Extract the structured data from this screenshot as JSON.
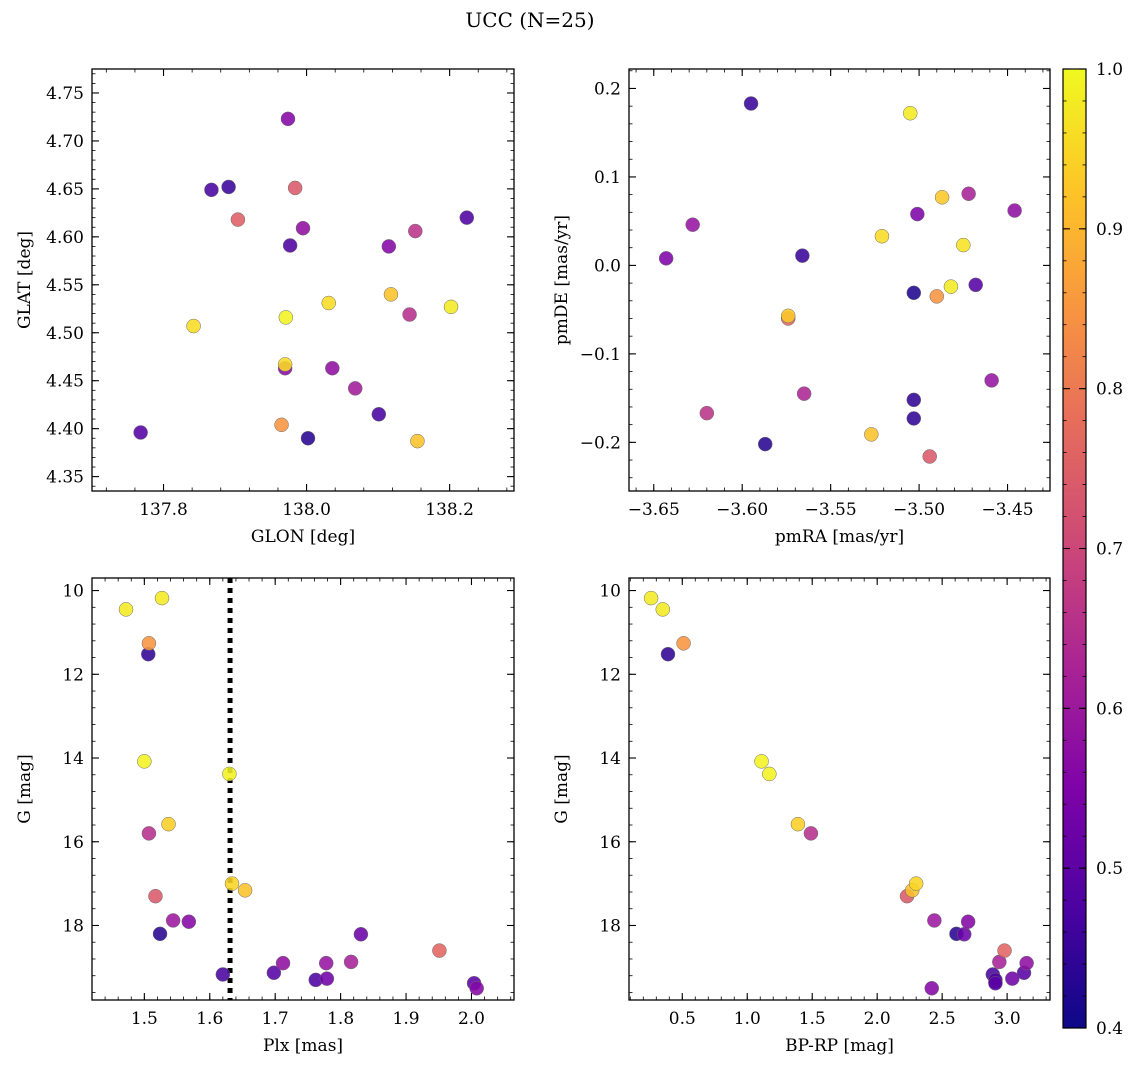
{
  "figure": {
    "title": "UCC (N=25)"
  },
  "colormap": {
    "name": "plasma",
    "min": 0.4,
    "max": 1.0,
    "ticks": [
      0.4,
      0.5,
      0.6,
      0.7,
      0.8,
      0.9,
      1.0
    ],
    "tick_labels": [
      "0.4",
      "0.5",
      "0.6",
      "0.7",
      "0.8",
      "0.9",
      "1.0"
    ]
  },
  "chart_data": [
    {
      "type": "scatter",
      "panel": "top-left",
      "xlabel": "GLON [deg]",
      "ylabel": "GLAT [deg]",
      "xlim": [
        137.7,
        138.29
      ],
      "ylim": [
        4.335,
        4.775
      ],
      "xticks": [
        137.8,
        138.0,
        138.2
      ],
      "xtick_labels": [
        "137.8",
        "138.0",
        "138.2"
      ],
      "yticks": [
        4.35,
        4.4,
        4.45,
        4.5,
        4.55,
        4.6,
        4.65,
        4.7,
        4.75
      ],
      "ytick_labels": [
        "4.35",
        "4.40",
        "4.45",
        "4.50",
        "4.55",
        "4.60",
        "4.65",
        "4.70",
        "4.75"
      ],
      "points": [
        {
          "x": 137.974,
          "y": 4.723,
          "c": 0.56
        },
        {
          "x": 137.867,
          "y": 4.649,
          "c": 0.47
        },
        {
          "x": 137.891,
          "y": 4.652,
          "c": 0.45
        },
        {
          "x": 137.984,
          "y": 4.651,
          "c": 0.74
        },
        {
          "x": 137.904,
          "y": 4.618,
          "c": 0.75
        },
        {
          "x": 137.995,
          "y": 4.609,
          "c": 0.58
        },
        {
          "x": 137.977,
          "y": 4.591,
          "c": 0.48
        },
        {
          "x": 138.224,
          "y": 4.62,
          "c": 0.48
        },
        {
          "x": 138.115,
          "y": 4.59,
          "c": 0.56
        },
        {
          "x": 138.152,
          "y": 4.606,
          "c": 0.66
        },
        {
          "x": 138.031,
          "y": 4.531,
          "c": 0.96
        },
        {
          "x": 138.118,
          "y": 4.54,
          "c": 0.92
        },
        {
          "x": 138.202,
          "y": 4.527,
          "c": 0.98
        },
        {
          "x": 137.842,
          "y": 4.507,
          "c": 0.96
        },
        {
          "x": 137.971,
          "y": 4.516,
          "c": 0.99
        },
        {
          "x": 138.144,
          "y": 4.519,
          "c": 0.65
        },
        {
          "x": 137.97,
          "y": 4.467,
          "c": 0.96
        },
        {
          "x": 137.97,
          "y": 4.463,
          "c": 0.57
        },
        {
          "x": 138.036,
          "y": 4.463,
          "c": 0.58
        },
        {
          "x": 138.068,
          "y": 4.442,
          "c": 0.61
        },
        {
          "x": 138.101,
          "y": 4.415,
          "c": 0.47
        },
        {
          "x": 137.965,
          "y": 4.404,
          "c": 0.85
        },
        {
          "x": 138.002,
          "y": 4.39,
          "c": 0.43
        },
        {
          "x": 138.155,
          "y": 4.387,
          "c": 0.92
        },
        {
          "x": 137.768,
          "y": 4.396,
          "c": 0.49
        }
      ]
    },
    {
      "type": "scatter",
      "panel": "top-right",
      "xlabel": "pmRA [mas/yr]",
      "ylabel": "pmDE [mas/yr]",
      "xlim": [
        -3.664,
        -3.426
      ],
      "ylim": [
        -0.255,
        0.222
      ],
      "xticks": [
        -3.65,
        -3.6,
        -3.55,
        -3.5,
        -3.45
      ],
      "xtick_labels": [
        "−3.65",
        "−3.60",
        "−3.55",
        "−3.50",
        "−3.45"
      ],
      "yticks": [
        -0.2,
        -0.1,
        0.0,
        0.1,
        0.2
      ],
      "ytick_labels": [
        "−0.2",
        "−0.1",
        "0.0",
        "0.1",
        "0.2"
      ],
      "points": [
        {
          "x": -3.595,
          "y": 0.183,
          "c": 0.45
        },
        {
          "x": -3.505,
          "y": 0.172,
          "c": 0.98
        },
        {
          "x": -3.472,
          "y": 0.081,
          "c": 0.62
        },
        {
          "x": -3.487,
          "y": 0.077,
          "c": 0.93
        },
        {
          "x": -3.446,
          "y": 0.062,
          "c": 0.58
        },
        {
          "x": -3.501,
          "y": 0.058,
          "c": 0.55
        },
        {
          "x": -3.628,
          "y": 0.046,
          "c": 0.59
        },
        {
          "x": -3.521,
          "y": 0.033,
          "c": 0.96
        },
        {
          "x": -3.475,
          "y": 0.023,
          "c": 0.97
        },
        {
          "x": -3.566,
          "y": 0.011,
          "c": 0.45
        },
        {
          "x": -3.643,
          "y": 0.008,
          "c": 0.55
        },
        {
          "x": -3.468,
          "y": -0.022,
          "c": 0.49
        },
        {
          "x": -3.482,
          "y": -0.024,
          "c": 0.98
        },
        {
          "x": -3.503,
          "y": -0.031,
          "c": 0.42
        },
        {
          "x": -3.49,
          "y": -0.035,
          "c": 0.85
        },
        {
          "x": -3.574,
          "y": -0.06,
          "c": 0.76
        },
        {
          "x": -3.574,
          "y": -0.057,
          "c": 0.93
        },
        {
          "x": -3.459,
          "y": -0.13,
          "c": 0.59
        },
        {
          "x": -3.565,
          "y": -0.145,
          "c": 0.63
        },
        {
          "x": -3.503,
          "y": -0.152,
          "c": 0.44
        },
        {
          "x": -3.62,
          "y": -0.167,
          "c": 0.66
        },
        {
          "x": -3.503,
          "y": -0.173,
          "c": 0.44
        },
        {
          "x": -3.527,
          "y": -0.191,
          "c": 0.92
        },
        {
          "x": -3.587,
          "y": -0.202,
          "c": 0.43
        },
        {
          "x": -3.494,
          "y": -0.216,
          "c": 0.74
        }
      ]
    },
    {
      "type": "scatter",
      "panel": "bottom-left",
      "xlabel": "Plx [mas]",
      "ylabel": "G [mag]",
      "xlim": [
        1.42,
        2.065
      ],
      "ylim": [
        19.78,
        9.7
      ],
      "y_inverted": true,
      "xticks": [
        1.5,
        1.6,
        1.7,
        1.8,
        1.9,
        2.0
      ],
      "xtick_labels": [
        "1.5",
        "1.6",
        "1.7",
        "1.8",
        "1.9",
        "2.0"
      ],
      "yticks": [
        10,
        12,
        14,
        16,
        18
      ],
      "ytick_labels": [
        "10",
        "12",
        "14",
        "16",
        "18"
      ],
      "vline": {
        "x": 1.631,
        "style": "dotted",
        "color": "#000000"
      },
      "points": [
        {
          "x": 1.472,
          "y": 10.45,
          "c": 0.98
        },
        {
          "x": 1.527,
          "y": 10.18,
          "c": 0.98
        },
        {
          "x": 1.507,
          "y": 11.26,
          "c": 0.85
        },
        {
          "x": 1.506,
          "y": 11.52,
          "c": 0.44
        },
        {
          "x": 1.5,
          "y": 14.08,
          "c": 0.99
        },
        {
          "x": 1.63,
          "y": 14.38,
          "c": 0.99
        },
        {
          "x": 1.537,
          "y": 15.58,
          "c": 0.94
        },
        {
          "x": 1.507,
          "y": 15.8,
          "c": 0.65
        },
        {
          "x": 1.634,
          "y": 17.0,
          "c": 0.95
        },
        {
          "x": 1.654,
          "y": 17.16,
          "c": 0.92
        },
        {
          "x": 1.517,
          "y": 17.3,
          "c": 0.74
        },
        {
          "x": 1.544,
          "y": 17.88,
          "c": 0.6
        },
        {
          "x": 1.568,
          "y": 17.91,
          "c": 0.56
        },
        {
          "x": 1.524,
          "y": 18.2,
          "c": 0.43
        },
        {
          "x": 1.831,
          "y": 18.21,
          "c": 0.52
        },
        {
          "x": 1.951,
          "y": 18.6,
          "c": 0.76
        },
        {
          "x": 1.712,
          "y": 18.9,
          "c": 0.58
        },
        {
          "x": 1.778,
          "y": 18.9,
          "c": 0.59
        },
        {
          "x": 1.816,
          "y": 18.87,
          "c": 0.62
        },
        {
          "x": 1.62,
          "y": 19.17,
          "c": 0.47
        },
        {
          "x": 1.698,
          "y": 19.13,
          "c": 0.49
        },
        {
          "x": 1.762,
          "y": 19.3,
          "c": 0.48
        },
        {
          "x": 1.779,
          "y": 19.27,
          "c": 0.53
        },
        {
          "x": 2.004,
          "y": 19.38,
          "c": 0.5
        },
        {
          "x": 2.008,
          "y": 19.5,
          "c": 0.56
        }
      ]
    },
    {
      "type": "scatter",
      "panel": "bottom-right",
      "xlabel": "BP-RP [mag]",
      "ylabel": "G [mag]",
      "xlim": [
        0.09,
        3.33
      ],
      "ylim": [
        19.78,
        9.7
      ],
      "y_inverted": true,
      "xticks": [
        0.5,
        1.0,
        1.5,
        2.0,
        2.5,
        3.0
      ],
      "xtick_labels": [
        "0.5",
        "1.0",
        "1.5",
        "2.0",
        "2.5",
        "3.0"
      ],
      "yticks": [
        10,
        12,
        14,
        16,
        18
      ],
      "ytick_labels": [
        "10",
        "12",
        "14",
        "16",
        "18"
      ],
      "points": [
        {
          "x": 0.26,
          "y": 10.18,
          "c": 0.98
        },
        {
          "x": 0.35,
          "y": 10.45,
          "c": 0.98
        },
        {
          "x": 0.51,
          "y": 11.26,
          "c": 0.85
        },
        {
          "x": 0.39,
          "y": 11.52,
          "c": 0.44
        },
        {
          "x": 1.11,
          "y": 14.08,
          "c": 0.99
        },
        {
          "x": 1.17,
          "y": 14.38,
          "c": 0.99
        },
        {
          "x": 1.39,
          "y": 15.58,
          "c": 0.94
        },
        {
          "x": 1.49,
          "y": 15.8,
          "c": 0.65
        },
        {
          "x": 2.3,
          "y": 17.0,
          "c": 0.95
        },
        {
          "x": 2.27,
          "y": 17.16,
          "c": 0.92
        },
        {
          "x": 2.23,
          "y": 17.3,
          "c": 0.74
        },
        {
          "x": 2.44,
          "y": 17.88,
          "c": 0.6
        },
        {
          "x": 2.7,
          "y": 17.91,
          "c": 0.56
        },
        {
          "x": 2.61,
          "y": 18.2,
          "c": 0.43
        },
        {
          "x": 2.67,
          "y": 18.21,
          "c": 0.52
        },
        {
          "x": 2.98,
          "y": 18.6,
          "c": 0.76
        },
        {
          "x": 2.94,
          "y": 18.87,
          "c": 0.62
        },
        {
          "x": 3.15,
          "y": 18.9,
          "c": 0.58
        },
        {
          "x": 2.89,
          "y": 19.17,
          "c": 0.47
        },
        {
          "x": 3.13,
          "y": 19.13,
          "c": 0.49
        },
        {
          "x": 3.04,
          "y": 19.27,
          "c": 0.53
        },
        {
          "x": 2.91,
          "y": 19.3,
          "c": 0.48
        },
        {
          "x": 2.91,
          "y": 19.38,
          "c": 0.5
        },
        {
          "x": 2.42,
          "y": 19.5,
          "c": 0.56
        },
        {
          "x": 2.91,
          "y": 19.35,
          "c": 0.44
        }
      ]
    }
  ]
}
